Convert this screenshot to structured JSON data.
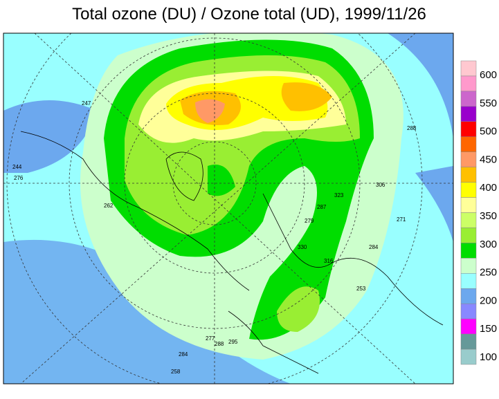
{
  "title": "Total ozone (DU) / Ozone total (UD), 1999/11/26",
  "legend": {
    "labels": [
      600,
      550,
      500,
      450,
      400,
      350,
      300,
      250,
      200,
      150,
      100
    ],
    "colors": [
      "#ffc8d0",
      "#ff99cc",
      "#cc66cc",
      "#9900cc",
      "#ff0000",
      "#ff6600",
      "#ff9966",
      "#ffc000",
      "#ffff00",
      "#ffff99",
      "#ccff66",
      "#99ee33",
      "#00dd00",
      "#ccffcc",
      "#99ffff",
      "#6ca8ee",
      "#8888ff",
      "#ff00ff",
      "#669999",
      "#99cccc"
    ]
  },
  "contour_labels": [
    "244",
    "276",
    "247",
    "288",
    "306",
    "323",
    "287",
    "279",
    "271",
    "284",
    "253",
    "316",
    "330",
    "277",
    "288",
    "295",
    "284",
    "258",
    "262"
  ]
}
